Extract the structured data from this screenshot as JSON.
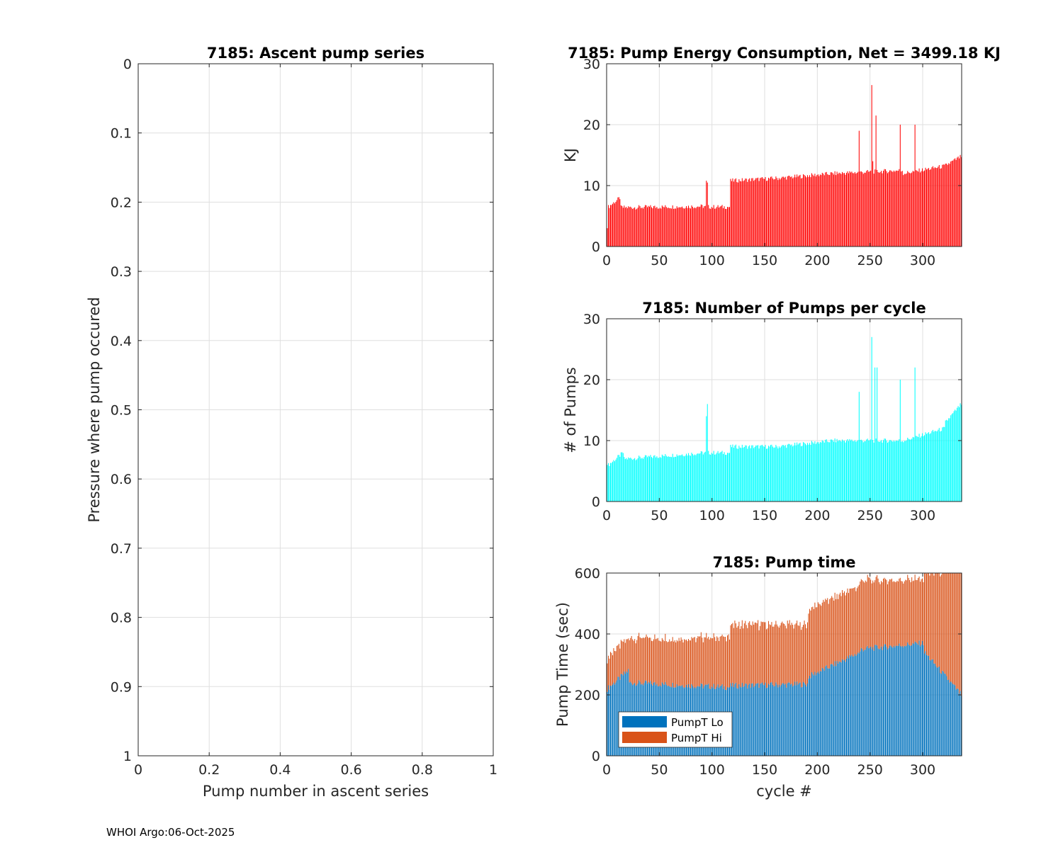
{
  "footer": "WHOI Argo:06-Oct-2025",
  "colors": {
    "energy": "#ff0000",
    "pumps": "#00ffff",
    "lo": "#0072bd",
    "hi": "#d95319",
    "grid": "#dfdfdf",
    "axis": "#262626"
  },
  "chart_data": [
    {
      "id": "ascent",
      "type": "scatter",
      "title": "7185: Ascent pump series",
      "xlabel": "Pump number in ascent series",
      "ylabel": "Pressure where pump occured",
      "xlim": [
        0,
        1
      ],
      "ylim": [
        0,
        1
      ],
      "y_reversed": true,
      "xticks": [
        0,
        0.2,
        0.4,
        0.6,
        0.8,
        1
      ],
      "xtick_labels": [
        "0",
        "0.2",
        "0.4",
        "0.6",
        "0.8",
        "1"
      ],
      "yticks": [
        0,
        0.1,
        0.2,
        0.3,
        0.4,
        0.5,
        0.6,
        0.7,
        0.8,
        0.9,
        1
      ],
      "ytick_labels": [
        "0",
        "0.1",
        "0.2",
        "0.3",
        "0.4",
        "0.5",
        "0.6",
        "0.7",
        "0.8",
        "0.9",
        "1"
      ],
      "grid": true,
      "points": []
    },
    {
      "id": "energy",
      "type": "bar",
      "title": "7185: Pump Energy Consumption,  Net = 3499.18 KJ",
      "xlabel": "",
      "ylabel": "KJ",
      "xlim": [
        0,
        337
      ],
      "ylim": [
        0,
        30
      ],
      "xticks": [
        0,
        50,
        100,
        150,
        200,
        250,
        300
      ],
      "xtick_labels": [
        "0",
        "50",
        "100",
        "150",
        "200",
        "250",
        "300"
      ],
      "yticks": [
        0,
        10,
        20,
        30
      ],
      "ytick_labels": [
        "0",
        "10",
        "20",
        "30"
      ],
      "grid": true,
      "segments": [
        {
          "x0": 1,
          "x1": 12,
          "v0": 6.5,
          "v1": 8.0
        },
        {
          "x0": 13,
          "x1": 92,
          "v0": 6.4,
          "v1": 6.6
        },
        {
          "x0": 93,
          "x1": 116,
          "v0": 6.5,
          "v1": 6.5
        },
        {
          "x0": 117,
          "x1": 160,
          "v0": 10.8,
          "v1": 11.2
        },
        {
          "x0": 161,
          "x1": 215,
          "v0": 11.2,
          "v1": 12.0
        },
        {
          "x0": 216,
          "x1": 280,
          "v0": 12.0,
          "v1": 12.5
        },
        {
          "x0": 281,
          "x1": 320,
          "v0": 12.0,
          "v1": 13.2
        },
        {
          "x0": 321,
          "x1": 336,
          "v0": 13.3,
          "v1": 14.8
        }
      ],
      "spikes": [
        {
          "x": 0,
          "v": 3.0
        },
        {
          "x": 94,
          "v": 10.8
        },
        {
          "x": 95,
          "v": 10.5
        },
        {
          "x": 239,
          "v": 19.0
        },
        {
          "x": 251,
          "v": 26.5
        },
        {
          "x": 252,
          "v": 14.0
        },
        {
          "x": 255,
          "v": 21.5
        },
        {
          "x": 278,
          "v": 20.0
        },
        {
          "x": 292,
          "v": 20.0
        }
      ]
    },
    {
      "id": "pumps",
      "type": "bar",
      "title": "7185: Number of Pumps per cycle",
      "xlabel": "",
      "ylabel": "# of Pumps",
      "xlim": [
        0,
        337
      ],
      "ylim": [
        0,
        30
      ],
      "xticks": [
        0,
        50,
        100,
        150,
        200,
        250,
        300
      ],
      "xtick_labels": [
        "0",
        "50",
        "100",
        "150",
        "200",
        "250",
        "300"
      ],
      "yticks": [
        0,
        10,
        20,
        30
      ],
      "ytick_labels": [
        "0",
        "10",
        "20",
        "30"
      ],
      "grid": true,
      "segments": [
        {
          "x0": 1,
          "x1": 15,
          "v0": 6,
          "v1": 8
        },
        {
          "x0": 16,
          "x1": 92,
          "v0": 7,
          "v1": 8
        },
        {
          "x0": 93,
          "x1": 116,
          "v0": 8,
          "v1": 8
        },
        {
          "x0": 117,
          "x1": 160,
          "v0": 9,
          "v1": 9
        },
        {
          "x0": 161,
          "x1": 215,
          "v0": 9,
          "v1": 10
        },
        {
          "x0": 216,
          "x1": 280,
          "v0": 10,
          "v1": 10
        },
        {
          "x0": 281,
          "x1": 320,
          "v0": 10,
          "v1": 12
        },
        {
          "x0": 321,
          "x1": 336,
          "v0": 13,
          "v1": 16
        }
      ],
      "spikes": [
        {
          "x": 0,
          "v": 6
        },
        {
          "x": 94,
          "v": 14
        },
        {
          "x": 95,
          "v": 16
        },
        {
          "x": 239,
          "v": 18
        },
        {
          "x": 251,
          "v": 27
        },
        {
          "x": 254,
          "v": 22
        },
        {
          "x": 256,
          "v": 22
        },
        {
          "x": 278,
          "v": 20
        },
        {
          "x": 292,
          "v": 22
        }
      ]
    },
    {
      "id": "pumptime",
      "type": "bar",
      "stacked": true,
      "title": "7185: Pump time",
      "xlabel": "cycle #",
      "ylabel": "Pump Time (sec)",
      "xlim": [
        0,
        337
      ],
      "ylim": [
        0,
        600
      ],
      "xticks": [
        0,
        50,
        100,
        150,
        200,
        250,
        300
      ],
      "xtick_labels": [
        "0",
        "50",
        "100",
        "150",
        "200",
        "250",
        "300"
      ],
      "yticks": [
        0,
        200,
        400,
        600
      ],
      "ytick_labels": [
        "0",
        "200",
        "400",
        "600"
      ],
      "grid": true,
      "legend": {
        "location": "bottom-left",
        "entries": [
          "PumpT Lo",
          "PumpT Hi"
        ]
      },
      "series": [
        {
          "name": "PumpT Lo",
          "segments": [
            {
              "x0": 0,
              "x1": 20,
              "v0": 220,
              "v1": 280
            },
            {
              "x0": 21,
              "x1": 116,
              "v0": 240,
              "v1": 225
            },
            {
              "x0": 117,
              "x1": 190,
              "v0": 230,
              "v1": 235
            },
            {
              "x0": 191,
              "x1": 240,
              "v0": 260,
              "v1": 340
            },
            {
              "x0": 241,
              "x1": 300,
              "v0": 350,
              "v1": 370
            },
            {
              "x0": 301,
              "x1": 336,
              "v0": 340,
              "v1": 200
            }
          ]
        },
        {
          "name": "PumpT Hi",
          "segments": [
            {
              "x0": 0,
              "x1": 20,
              "v0": 100,
              "v1": 110
            },
            {
              "x0": 21,
              "x1": 116,
              "v0": 145,
              "v1": 165
            },
            {
              "x0": 117,
              "x1": 190,
              "v0": 200,
              "v1": 195
            },
            {
              "x0": 191,
              "x1": 240,
              "v0": 220,
              "v1": 220
            },
            {
              "x0": 241,
              "x1": 300,
              "v0": 225,
              "v1": 210
            },
            {
              "x0": 301,
              "x1": 336,
              "v0": 260,
              "v1": 400
            }
          ]
        }
      ]
    }
  ]
}
